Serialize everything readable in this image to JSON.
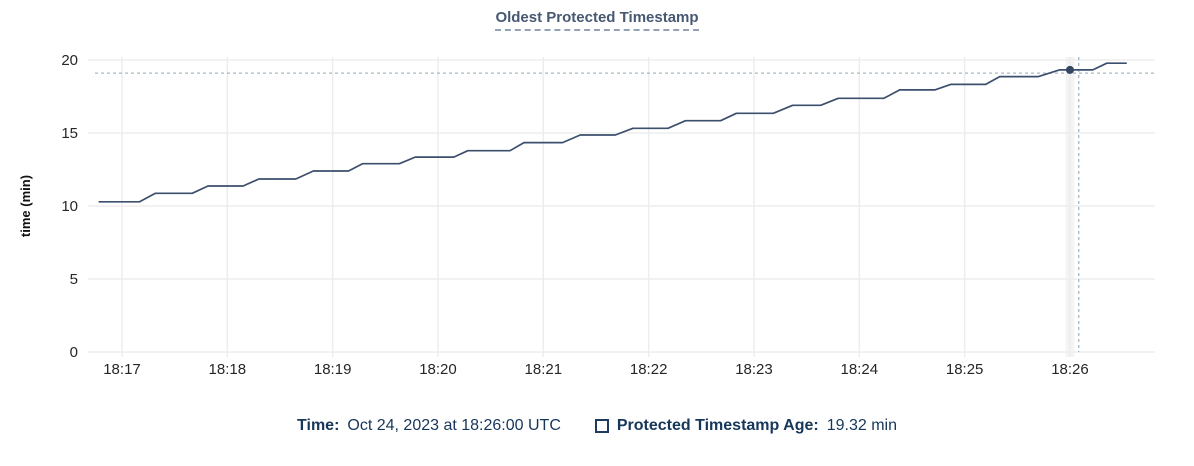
{
  "title": "Oldest Protected Timestamp",
  "legend": {
    "time_label": "Time:",
    "time_value": "Oct 24, 2023 at 18:26:00 UTC",
    "series_label": "Protected Timestamp Age:",
    "series_value": "19.32 min",
    "series_checkbox_checked": false
  },
  "colors": {
    "line": "#3c4f6d",
    "point": "#334763",
    "title": "#475872",
    "legend_text": "#16365a",
    "grid": "#ededed",
    "hover_band": "#f4f4f4",
    "crosshair": "#a5b8c6",
    "tick_text": "#262626"
  },
  "chart_data": {
    "type": "line",
    "title": "Oldest Protected Timestamp",
    "xlabel": "",
    "ylabel": "time (min)",
    "ylim": [
      0,
      20
    ],
    "y_ticks": [
      0,
      5,
      10,
      15,
      20
    ],
    "x_ticks": [
      "18:17",
      "18:18",
      "18:19",
      "18:20",
      "18:21",
      "18:22",
      "18:23",
      "18:24",
      "18:25",
      "18:26"
    ],
    "grid": true,
    "legend_position": "bottom",
    "series": [
      {
        "name": "Protected Timestamp Age",
        "unit": "min",
        "points": [
          [
            "18:16:47",
            10.29
          ],
          [
            "18:17:10",
            10.29
          ],
          [
            "18:17:19",
            10.87
          ],
          [
            "18:17:40",
            10.87
          ],
          [
            "18:17:49",
            11.37
          ],
          [
            "18:18:09",
            11.37
          ],
          [
            "18:18:18",
            11.85
          ],
          [
            "18:18:39",
            11.85
          ],
          [
            "18:18:49",
            12.4
          ],
          [
            "18:19:09",
            12.4
          ],
          [
            "18:19:17",
            12.9
          ],
          [
            "18:19:38",
            12.9
          ],
          [
            "18:19:47",
            13.35
          ],
          [
            "18:20:09",
            13.35
          ],
          [
            "18:20:17",
            13.79
          ],
          [
            "18:20:41",
            13.79
          ],
          [
            "18:20:49",
            14.34
          ],
          [
            "18:21:11",
            14.34
          ],
          [
            "18:21:21",
            14.86
          ],
          [
            "18:21:41",
            14.86
          ],
          [
            "18:21:51",
            15.32
          ],
          [
            "18:22:11",
            15.32
          ],
          [
            "18:22:21",
            15.84
          ],
          [
            "18:22:41",
            15.84
          ],
          [
            "18:22:50",
            16.35
          ],
          [
            "18:23:11",
            16.35
          ],
          [
            "18:23:22",
            16.9
          ],
          [
            "18:23:38",
            16.9
          ],
          [
            "18:23:48",
            17.38
          ],
          [
            "18:24:14",
            17.38
          ],
          [
            "18:24:23",
            17.95
          ],
          [
            "18:24:43",
            17.95
          ],
          [
            "18:24:52",
            18.33
          ],
          [
            "18:25:12",
            18.33
          ],
          [
            "18:25:20",
            18.86
          ],
          [
            "18:25:42",
            18.86
          ],
          [
            "18:25:54",
            19.32
          ],
          [
            "18:26:13",
            19.32
          ],
          [
            "18:26:21",
            19.78
          ],
          [
            "18:26:32",
            19.78
          ]
        ]
      }
    ],
    "highlight_point": {
      "x": "18:26:00",
      "y": 19.32
    },
    "crosshair": {
      "x": "18:26:05",
      "y": 19.1
    }
  }
}
